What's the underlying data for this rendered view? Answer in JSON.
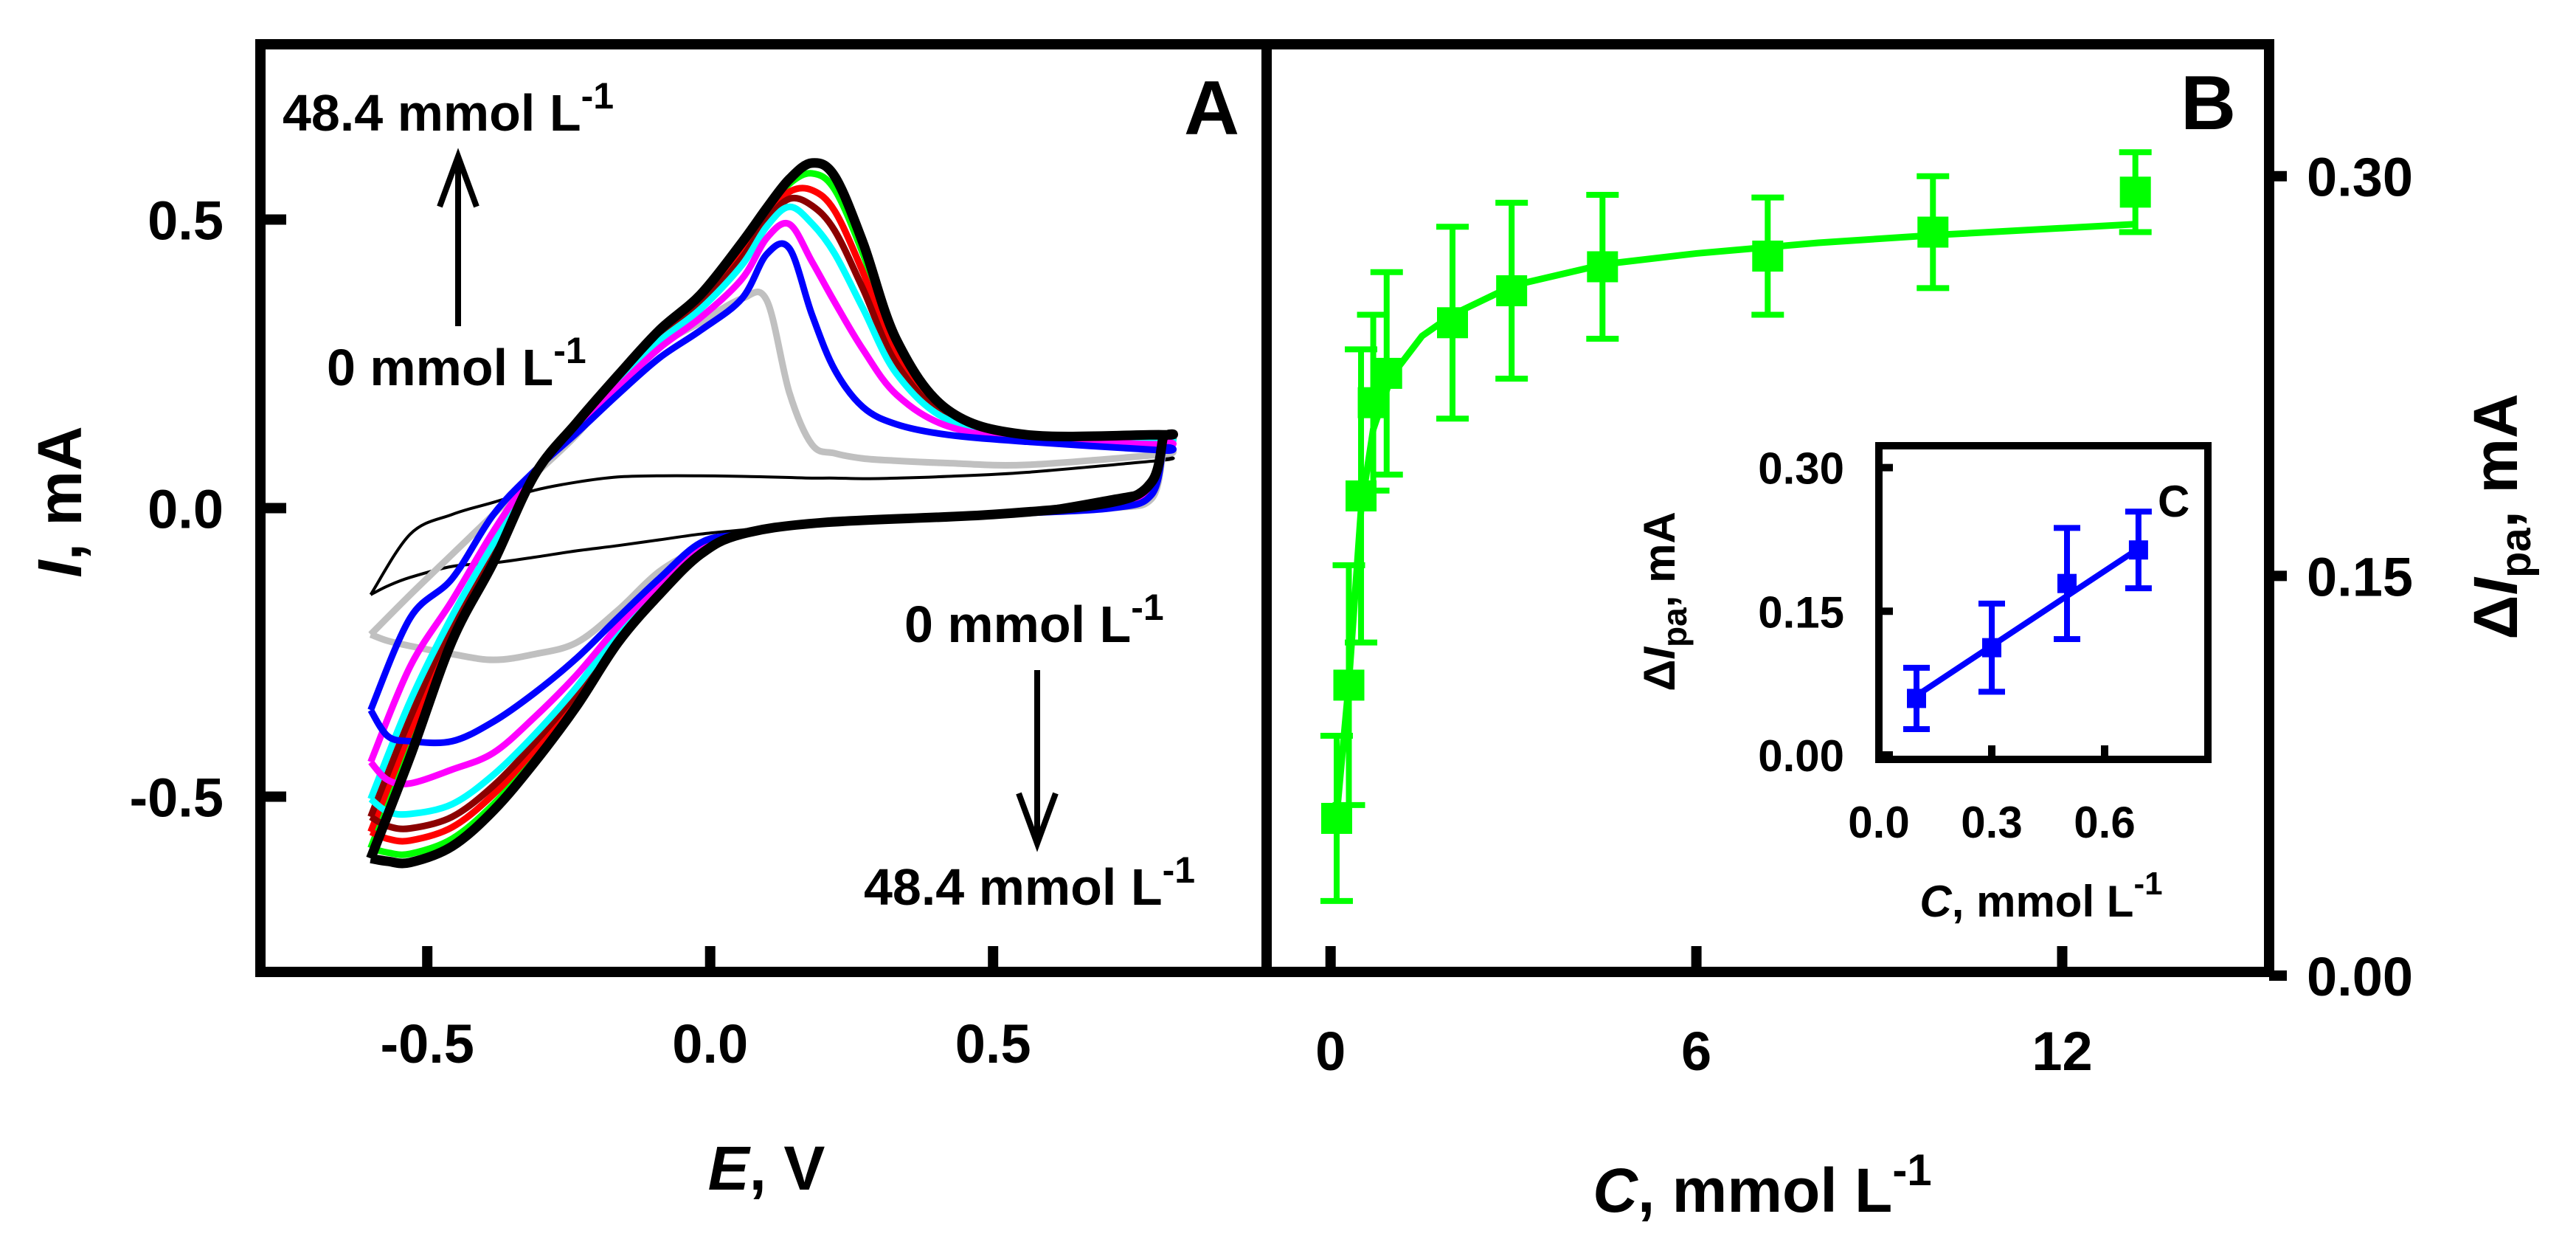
{
  "chart_data": [
    {
      "id": "A",
      "type": "line",
      "panel_label": "A",
      "xlabel": {
        "italic": "E",
        "rest": ", V"
      },
      "ylabel": {
        "italic": "I",
        "rest": ", mA"
      },
      "xlim": [
        -0.795,
        0.984
      ],
      "ylim": [
        -0.804,
        0.804
      ],
      "xticks": [
        -0.5,
        0.0,
        0.5
      ],
      "xtick_labels": [
        "-0.5",
        "0.0",
        "0.5"
      ],
      "yticks": [
        0.5,
        0.0,
        -0.5
      ],
      "ytick_labels": [
        "0.5",
        "0.0",
        "-0.5"
      ],
      "annotations": {
        "anodic_top": {
          "main": "48.4 mmol L",
          "sup": "-1"
        },
        "anodic_bottom": {
          "main": "0 mmol L",
          "sup": "-1"
        },
        "cathodic_top": {
          "main": "0 mmol L",
          "sup": "-1"
        },
        "cathodic_bottom": {
          "main": "48.4 mmol L",
          "sup": "-1"
        }
      },
      "E_forward": [
        -0.6,
        -0.53,
        -0.456,
        -0.383,
        -0.31,
        -0.236,
        -0.163,
        -0.09,
        -0.017,
        0.056,
        0.1,
        0.14,
        0.18,
        0.22,
        0.27,
        0.33,
        0.42,
        0.56,
        0.8
      ],
      "E_reverse": [
        0.8,
        0.78,
        0.71,
        0.5,
        0.2,
        0.056,
        -0.017,
        -0.09,
        -0.163,
        -0.236,
        -0.31,
        -0.383,
        -0.456,
        -0.53,
        -0.57,
        -0.6
      ],
      "series": [
        {
          "name": "background",
          "color": "#000000",
          "width": 4,
          "I_forward": [
            -0.15,
            -0.045,
            -0.011,
            0.01,
            0.031,
            0.045,
            0.054,
            0.056,
            0.056,
            0.055,
            0.054,
            0.053,
            0.052,
            0.052,
            0.051,
            0.052,
            0.055,
            0.062,
            0.083
          ],
          "I_reverse": [
            0.083,
            0.038,
            0.02,
            -0.011,
            -0.025,
            -0.038,
            -0.045,
            -0.055,
            -0.065,
            -0.074,
            -0.085,
            -0.095,
            -0.101,
            -0.12,
            -0.135,
            -0.15
          ]
        },
        {
          "name": "0 mmol L-1",
          "color": "#c0c0c0",
          "width": 9,
          "I_forward": [
            -0.219,
            -0.15,
            -0.08,
            -0.011,
            0.058,
            0.127,
            0.21,
            0.28,
            0.322,
            0.363,
            0.36,
            0.2,
            0.11,
            0.095,
            0.086,
            0.082,
            0.078,
            0.075,
            0.093
          ],
          "I_reverse": [
            0.093,
            0.016,
            0.0,
            -0.011,
            -0.025,
            -0.045,
            -0.07,
            -0.11,
            -0.177,
            -0.233,
            -0.253,
            -0.263,
            -0.253,
            -0.239,
            -0.23,
            -0.219
          ]
        },
        {
          "name": "green",
          "color": "#00ff00",
          "width": 9,
          "I_forward": [
            -0.589,
            -0.413,
            -0.222,
            -0.088,
            0.058,
            0.147,
            0.228,
            0.303,
            0.366,
            0.454,
            0.514,
            0.562,
            0.58,
            0.552,
            0.441,
            0.28,
            0.167,
            0.126,
            0.125
          ],
          "I_reverse": [
            0.119,
            0.043,
            0.009,
            -0.011,
            -0.025,
            -0.045,
            -0.079,
            -0.148,
            -0.23,
            -0.337,
            -0.432,
            -0.513,
            -0.573,
            -0.599,
            -0.597,
            -0.589
          ]
        },
        {
          "name": "red",
          "color": "#ff0000",
          "width": 9,
          "I_forward": [
            -0.561,
            -0.387,
            -0.211,
            -0.079,
            0.059,
            0.145,
            0.224,
            0.302,
            0.359,
            0.445,
            0.506,
            0.548,
            0.551,
            0.515,
            0.409,
            0.264,
            0.162,
            0.125,
            0.122
          ],
          "I_reverse": [
            0.116,
            0.041,
            0.008,
            -0.011,
            -0.025,
            -0.045,
            -0.076,
            -0.145,
            -0.225,
            -0.328,
            -0.418,
            -0.496,
            -0.553,
            -0.576,
            -0.573,
            -0.561
          ]
        },
        {
          "name": "dark-red",
          "color": "#8b0000",
          "width": 9,
          "I_forward": [
            -0.535,
            -0.363,
            -0.2,
            -0.071,
            0.06,
            0.143,
            0.221,
            0.296,
            0.353,
            0.433,
            0.498,
            0.536,
            0.524,
            0.481,
            0.38,
            0.249,
            0.158,
            0.123,
            0.119
          ],
          "I_reverse": [
            0.114,
            0.039,
            0.007,
            -0.011,
            -0.025,
            -0.045,
            -0.074,
            -0.142,
            -0.221,
            -0.32,
            -0.406,
            -0.481,
            -0.535,
            -0.555,
            -0.551,
            -0.535
          ]
        },
        {
          "name": "cyan",
          "color": "#00ffff",
          "width": 9,
          "I_forward": [
            -0.504,
            -0.334,
            -0.187,
            -0.061,
            0.061,
            0.141,
            0.217,
            0.289,
            0.345,
            0.421,
            0.488,
            0.522,
            0.493,
            0.441,
            0.346,
            0.232,
            0.153,
            0.122,
            0.116
          ],
          "I_reverse": [
            0.112,
            0.036,
            0.006,
            -0.011,
            -0.025,
            -0.045,
            -0.072,
            -0.139,
            -0.216,
            -0.31,
            -0.392,
            -0.462,
            -0.513,
            -0.53,
            -0.526,
            -0.504
          ]
        },
        {
          "name": "magenta",
          "color": "#ff00ff",
          "width": 9,
          "I_forward": [
            -0.44,
            -0.274,
            -0.16,
            -0.04,
            0.063,
            0.136,
            0.209,
            0.277,
            0.33,
            0.397,
            0.468,
            0.492,
            0.427,
            0.357,
            0.275,
            0.196,
            0.142,
            0.119,
            0.11
          ],
          "I_reverse": [
            0.107,
            0.031,
            0.004,
            -0.011,
            -0.025,
            -0.045,
            -0.067,
            -0.132,
            -0.205,
            -0.289,
            -0.362,
            -0.424,
            -0.453,
            -0.477,
            -0.471,
            -0.44
          ]
        },
        {
          "name": "blue",
          "color": "#0000ff",
          "width": 9,
          "I_forward": [
            -0.35,
            -0.19,
            -0.122,
            -0.011,
            0.065,
            0.13,
            0.197,
            0.26,
            0.308,
            0.363,
            0.44,
            0.45,
            0.335,
            0.24,
            0.175,
            0.145,
            0.127,
            0.115,
            0.1
          ],
          "I_reverse": [
            0.1,
            0.023,
            0.0,
            -0.011,
            -0.025,
            -0.045,
            -0.06,
            -0.122,
            -0.19,
            -0.26,
            -0.32,
            -0.37,
            -0.404,
            -0.404,
            -0.395,
            -0.35
          ]
        },
        {
          "name": "48.4 mmol L-1",
          "color": "#000000",
          "width": 13,
          "I_forward": [
            -0.607,
            -0.43,
            -0.23,
            -0.094,
            0.058,
            0.148,
            0.23,
            0.308,
            0.37,
            0.46,
            0.52,
            0.57,
            0.598,
            0.575,
            0.46,
            0.29,
            0.17,
            0.127,
            0.127
          ],
          "I_reverse": [
            0.12,
            0.045,
            0.01,
            -0.011,
            -0.025,
            -0.045,
            -0.08,
            -0.15,
            -0.233,
            -0.343,
            -0.44,
            -0.524,
            -0.586,
            -0.614,
            -0.612,
            -0.607
          ]
        }
      ]
    },
    {
      "id": "B",
      "type": "scatter",
      "panel_label": "B",
      "xlabel": {
        "italic": "C",
        "rest": ", mmol L",
        "sup": "-1"
      },
      "ylabel": {
        "prefix": "Δ",
        "italic": "I",
        "sub": "pa",
        "rest": ", mA"
      },
      "xlim": [
        -1.05,
        15.39
      ],
      "ylim": [
        0.0,
        0.349
      ],
      "xticks": [
        0,
        6,
        12
      ],
      "xtick_labels": [
        "0",
        "6",
        "12"
      ],
      "yticks": [
        0.0,
        0.15,
        0.3
      ],
      "ytick_labels": [
        "0.00",
        "0.15",
        "0.30"
      ],
      "y_axis_side": "right",
      "color": "#00ff00",
      "points": [
        {
          "x": 0.1,
          "y": 0.059,
          "err": 0.031
        },
        {
          "x": 0.3,
          "y": 0.109,
          "err": 0.045
        },
        {
          "x": 0.5,
          "y": 0.18,
          "err": 0.055
        },
        {
          "x": 0.7,
          "y": 0.215,
          "err": 0.033
        },
        {
          "x": 0.92,
          "y": 0.226,
          "err": 0.038
        },
        {
          "x": 2.0,
          "y": 0.245,
          "err": 0.036
        },
        {
          "x": 2.97,
          "y": 0.257,
          "err": 0.033
        },
        {
          "x": 4.46,
          "y": 0.266,
          "err": 0.027
        },
        {
          "x": 7.17,
          "y": 0.27,
          "err": 0.022
        },
        {
          "x": 9.88,
          "y": 0.279,
          "err": 0.021
        },
        {
          "x": 13.2,
          "y": 0.294,
          "err": 0.015
        }
      ],
      "fit": [
        [
          0.1,
          0.06
        ],
        [
          0.3,
          0.11
        ],
        [
          0.5,
          0.175
        ],
        [
          0.7,
          0.205
        ],
        [
          1.0,
          0.225
        ],
        [
          1.5,
          0.24
        ],
        [
          2.0,
          0.248
        ],
        [
          3.0,
          0.259
        ],
        [
          4.5,
          0.267
        ],
        [
          6.0,
          0.271
        ],
        [
          8.0,
          0.275
        ],
        [
          10.0,
          0.278
        ],
        [
          13.2,
          0.282
        ]
      ]
    },
    {
      "id": "C",
      "type": "scatter",
      "panel_label": "C",
      "inset_of": "B",
      "xlabel": {
        "italic": "C",
        "rest": ", mmol L",
        "sup": "-1"
      },
      "ylabel": {
        "prefix": "Δ",
        "italic": "I",
        "sub": "pa",
        "rest": ", mA"
      },
      "xlim": [
        0.0,
        0.886
      ],
      "ylim": [
        -0.005,
        0.322
      ],
      "xticks": [
        0.0,
        0.3,
        0.6
      ],
      "xtick_labels": [
        "0.0",
        "0.3",
        "0.6"
      ],
      "yticks": [
        0.0,
        0.15,
        0.3
      ],
      "ytick_labels": [
        "0.00",
        "0.15",
        "0.30"
      ],
      "color": "#0000ff",
      "points": [
        {
          "x": 0.1,
          "y": 0.059,
          "err": 0.032
        },
        {
          "x": 0.3,
          "y": 0.112,
          "err": 0.046
        },
        {
          "x": 0.5,
          "y": 0.179,
          "err": 0.058
        },
        {
          "x": 0.69,
          "y": 0.214,
          "err": 0.04
        }
      ],
      "fit": [
        [
          0.1,
          0.062
        ],
        [
          0.7,
          0.218
        ]
      ]
    }
  ]
}
